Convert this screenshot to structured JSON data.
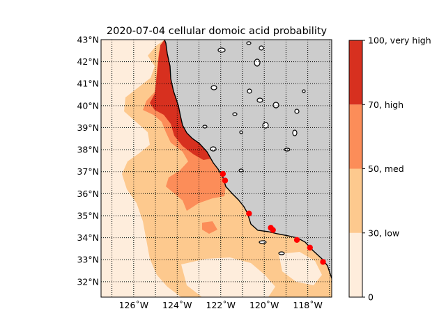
{
  "title": "2020-07-04 cellular domoic acid probability",
  "colors": {
    "land": "#cccccc",
    "class_0_30": "#feeddc",
    "class_30_50": "#fdc98e",
    "class_50_70": "#fc8d59",
    "class_70_100": "#d7301f",
    "site_marker": "#ff0000",
    "coastline": "#000000"
  },
  "map": {
    "lon_range": [
      -127.5,
      -116.9
    ],
    "lat_range": [
      31.3,
      43.0
    ],
    "lat_ticks": [
      {
        "value": 32,
        "label": "32°N"
      },
      {
        "value": 33,
        "label": "33°N"
      },
      {
        "value": 34,
        "label": "34°N"
      },
      {
        "value": 35,
        "label": "35°N"
      },
      {
        "value": 36,
        "label": "36°N"
      },
      {
        "value": 37,
        "label": "37°N"
      },
      {
        "value": 38,
        "label": "38°N"
      },
      {
        "value": 39,
        "label": "39°N"
      },
      {
        "value": 40,
        "label": "40°N"
      },
      {
        "value": 41,
        "label": "41°N"
      },
      {
        "value": 42,
        "label": "42°N"
      },
      {
        "value": 43,
        "label": "43°N"
      }
    ],
    "lon_ticks": [
      {
        "value": -126,
        "label": "126˚W"
      },
      {
        "value": -124,
        "label": "124˚W"
      },
      {
        "value": -122,
        "label": "122˚W"
      },
      {
        "value": -120,
        "label": "120˚W"
      },
      {
        "value": -118,
        "label": "118˚W"
      }
    ],
    "grid_lon": [
      -127,
      -126,
      -125,
      -124,
      -123,
      -122,
      -121,
      -120,
      -119,
      -118,
      -117
    ],
    "sites": [
      {
        "lon": -121.9,
        "lat": 36.9
      },
      {
        "lon": -121.8,
        "lat": 36.6
      },
      {
        "lon": -120.7,
        "lat": 35.1
      },
      {
        "lon": -119.7,
        "lat": 34.45
      },
      {
        "lon": -119.6,
        "lat": 34.35
      },
      {
        "lon": -118.5,
        "lat": 33.9
      },
      {
        "lon": -117.9,
        "lat": 33.55
      },
      {
        "lon": -117.3,
        "lat": 32.9
      }
    ]
  },
  "colorbar": {
    "levels": [
      {
        "value": 0,
        "label": "0"
      },
      {
        "value": 30,
        "label": "30, low"
      },
      {
        "value": 50,
        "label": "50, med"
      },
      {
        "value": 70,
        "label": "70, high"
      },
      {
        "value": 100,
        "label": "100, very high"
      }
    ]
  }
}
